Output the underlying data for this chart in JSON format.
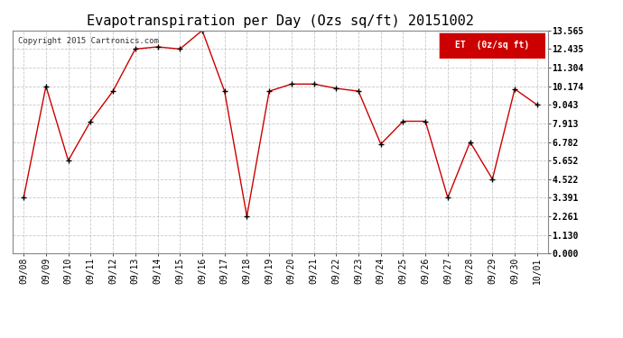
{
  "title": "Evapotranspiration per Day (Ozs sq/ft) 20151002",
  "copyright_text": "Copyright 2015 Cartronics.com",
  "legend_label": "ET  (0z/sq ft)",
  "x_labels": [
    "09/08",
    "09/09",
    "09/10",
    "09/11",
    "09/12",
    "09/13",
    "09/14",
    "09/15",
    "09/16",
    "09/17",
    "09/18",
    "09/19",
    "09/20",
    "09/21",
    "09/22",
    "09/23",
    "09/24",
    "09/25",
    "09/26",
    "09/27",
    "09/28",
    "09/29",
    "09/30",
    "10/01"
  ],
  "y_values": [
    3.391,
    10.174,
    5.652,
    8.043,
    9.869,
    12.435,
    12.565,
    12.435,
    13.565,
    9.869,
    2.261,
    9.869,
    10.304,
    10.304,
    10.043,
    9.869,
    6.652,
    8.043,
    8.043,
    3.391,
    6.782,
    4.522,
    10.0,
    9.043
  ],
  "y_min": 0.0,
  "y_max": 13.565,
  "y_ticks": [
    0.0,
    1.13,
    2.261,
    3.391,
    4.522,
    5.652,
    6.782,
    7.913,
    9.043,
    10.174,
    11.304,
    12.435,
    13.565
  ],
  "line_color": "#cc0000",
  "marker": "+",
  "marker_color": "#000000",
  "bg_color": "#ffffff",
  "grid_color": "#c8c8c8",
  "title_fontsize": 11,
  "tick_fontsize": 7,
  "copyright_fontsize": 6.5,
  "legend_bg": "#cc0000",
  "legend_text_color": "#ffffff",
  "legend_fontsize": 7
}
